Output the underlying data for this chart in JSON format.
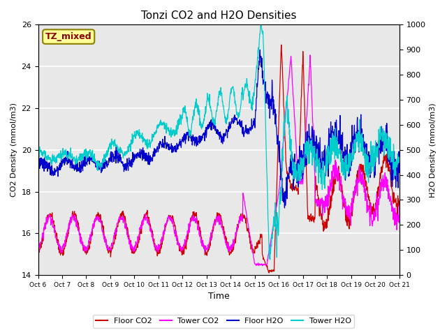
{
  "title": "Tonzi CO2 and H2O Densities",
  "xlabel": "Time",
  "ylabel_left": "CO2 Density (mmol/m3)",
  "ylabel_right": "H2O Density (mmol/m3)",
  "ylim_left": [
    14,
    26
  ],
  "ylim_right": [
    0,
    1000
  ],
  "annotation_text": "TZ_mixed",
  "annotation_color": "#8B0000",
  "annotation_bg": "#FFFF99",
  "annotation_border": "#8B8000",
  "xtick_labels": [
    "Oct 6",
    "Oct 7",
    "Oct 8",
    "Oct 9",
    "Oct 10",
    "Oct 11",
    "Oct 12",
    "Oct 13",
    "Oct 14",
    "Oct 15",
    "Oct 16",
    "Oct 17",
    "Oct 18",
    "Oct 19",
    "Oct 20",
    "Oct 21"
  ],
  "colors": {
    "floor_co2": "#CC0000",
    "tower_co2": "#FF00FF",
    "floor_h2o": "#0000CC",
    "tower_h2o": "#00CCCC"
  },
  "legend_labels": [
    "Floor CO2",
    "Tower CO2",
    "Floor H2O",
    "Tower H2O"
  ],
  "bg_color": "#E8E8E8",
  "grid_color": "white"
}
